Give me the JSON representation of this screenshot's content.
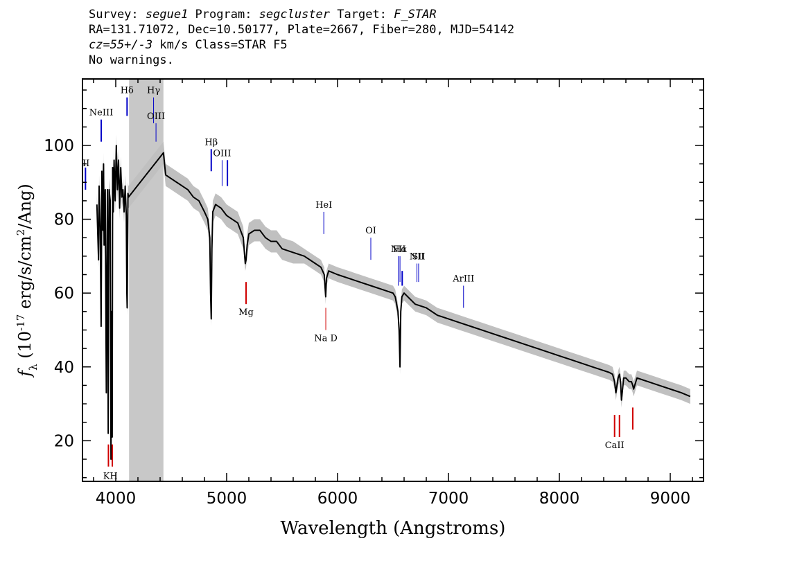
{
  "header": {
    "line1": {
      "survey_label": "Survey: ",
      "survey": "segue1",
      "program_label": " Program: ",
      "program": "segcluster",
      "target_label": " Target: ",
      "target": "F_STAR"
    },
    "line2": "RA=131.71072, Dec=10.50177, Plate=2667, Fiber=280, MJD=54142",
    "line3": {
      "cz": "cz=55+/-3",
      "rest": " km/s Class=STAR F5"
    },
    "line4": "No warnings."
  },
  "colors": {
    "spectrum": "#000000",
    "noise_band": "#c0c0c0",
    "masked_region": "#c8c8c8",
    "emission_line": "#0000c8",
    "absorption_line": "#d00000"
  },
  "chart_data": {
    "type": "line",
    "title": "",
    "xlabel": "Wavelength (Angstroms)",
    "ylabel_parts": {
      "symbol": "f",
      "symbol_sub": "λ",
      "open": " (10",
      "exp1": "-17",
      "mid": " erg/s/cm",
      "exp2": "2",
      "close": "/Ang)"
    },
    "xlim": [
      3700,
      9300
    ],
    "ylim": [
      9,
      118
    ],
    "xticks": [
      4000,
      5000,
      6000,
      7000,
      8000,
      9000
    ],
    "yticks": [
      20,
      40,
      60,
      80,
      100
    ],
    "grid": false,
    "masked_region": [
      4120,
      4430
    ],
    "series": [
      {
        "x": [
          3830,
          3845,
          3850,
          3860,
          3868,
          3875,
          3885,
          3890,
          3895,
          3905,
          3915,
          3925,
          3932,
          3935,
          3940,
          3950,
          3957,
          3962,
          3968,
          3972,
          3978,
          3985,
          3995,
          4005,
          4015,
          4025,
          4035,
          4045,
          4055,
          4065,
          4075,
          4085,
          4095,
          4100,
          4103,
          4110,
          4115,
          4430,
          4450,
          4500,
          4550,
          4600,
          4650,
          4700,
          4750,
          4800,
          4830,
          4848,
          4855,
          4861,
          4867,
          4875,
          4900,
          4950,
          5000,
          5050,
          5100,
          5150,
          5168,
          5175,
          5185,
          5200,
          5250,
          5300,
          5350,
          5400,
          5450,
          5500,
          5600,
          5700,
          5800,
          5850,
          5880,
          5893,
          5900,
          5920,
          6000,
          6100,
          6200,
          6300,
          6400,
          6500,
          6520,
          6545,
          6555,
          6563,
          6570,
          6580,
          6600,
          6700,
          6800,
          6900,
          7000,
          7100,
          7200,
          7300,
          7400,
          7500,
          7600,
          7700,
          7800,
          7900,
          8000,
          8100,
          8200,
          8300,
          8400,
          8450,
          8480,
          8498,
          8510,
          8530,
          8542,
          8552,
          8560,
          8580,
          8600,
          8630,
          8650,
          8662,
          8670,
          8700,
          8800,
          8900,
          9000,
          9100,
          9180
        ],
        "y": [
          84,
          69,
          89,
          78,
          51,
          93,
          77,
          95,
          73,
          88,
          33,
          88,
          22,
          60,
          88,
          85,
          15,
          55,
          21,
          94,
          82,
          96,
          85,
          100,
          88,
          96,
          83,
          94,
          86,
          88,
          82,
          89,
          81,
          60,
          56,
          87,
          86,
          98,
          92,
          91,
          90,
          89,
          88,
          86,
          85,
          82,
          80,
          75,
          60,
          53,
          72,
          82,
          84,
          83,
          81,
          80,
          79,
          75,
          68,
          69,
          73,
          76,
          77,
          77,
          75,
          74,
          74,
          72,
          71,
          70,
          68,
          67,
          65,
          59,
          64,
          66,
          65,
          64,
          63,
          62,
          61,
          60,
          59,
          55,
          50,
          40,
          55,
          59,
          60,
          57,
          56,
          54,
          53,
          52,
          51,
          50,
          49,
          48,
          47,
          46,
          45,
          44,
          43,
          42,
          41,
          40,
          39,
          38.5,
          38,
          36,
          33,
          37,
          38,
          36,
          31,
          37,
          37,
          36,
          36,
          35,
          34,
          37,
          36,
          35,
          34,
          33,
          32
        ]
      }
    ],
    "annotations": [
      {
        "label": "NeIII",
        "x": 3869,
        "y_lo": 101,
        "y_hi": 107,
        "type": "emission"
      },
      {
        "label": "Hδ",
        "x": 4102,
        "y_lo": 108,
        "y_hi": 113,
        "type": "emission"
      },
      {
        "label": "Hγ",
        "x": 4341,
        "y_lo": 106,
        "y_hi": 113,
        "type": "emission"
      },
      {
        "label": "OIII",
        "x": 4363,
        "y_lo": 101,
        "y_hi": 106,
        "type": "emission"
      },
      {
        "label": "Hβ",
        "x": 4861,
        "y_lo": 93,
        "y_hi": 99,
        "type": "emission"
      },
      {
        "label": "OIII",
        "x": 4959,
        "y_lo": 89,
        "y_hi": 96,
        "type": "emission"
      },
      {
        "label": "",
        "x": 5007,
        "y_lo": 89,
        "y_hi": 96,
        "type": "emission"
      },
      {
        "label": "HeI",
        "x": 5876,
        "y_lo": 76,
        "y_hi": 82,
        "type": "emission"
      },
      {
        "label": "OI",
        "x": 6300,
        "y_lo": 69,
        "y_hi": 75,
        "type": "emission"
      },
      {
        "label": "NII",
        "x": 6548,
        "y_lo": 62,
        "y_hi": 70,
        "type": "emission"
      },
      {
        "label": "Hα",
        "x": 6563,
        "y_lo": 63,
        "y_hi": 70,
        "type": "emission"
      },
      {
        "label": "",
        "x": 6583,
        "y_lo": 62,
        "y_hi": 66,
        "type": "emission"
      },
      {
        "label": "NII",
        "x": 6716,
        "y_lo": 63,
        "y_hi": 68,
        "type": "emission"
      },
      {
        "label": "SII",
        "x": 6731,
        "y_lo": 63,
        "y_hi": 68,
        "type": "emission"
      },
      {
        "label": "ArIII",
        "x": 7136,
        "y_lo": 56,
        "y_hi": 62,
        "type": "emission"
      },
      {
        "label": "",
        "x": 3727,
        "y_lo": 88,
        "y_hi": 94,
        "type": "emission"
      },
      {
        "label": "K",
        "x": 3934,
        "y_lo": 13,
        "y_hi": 19,
        "type": "absorption"
      },
      {
        "label": "H",
        "x": 3969,
        "y_lo": 13,
        "y_hi": 19,
        "type": "absorption"
      },
      {
        "label": "Mg",
        "x": 5175,
        "y_lo": 57,
        "y_hi": 63,
        "type": "absorption"
      },
      {
        "label": "Na D",
        "x": 5894,
        "y_lo": 50,
        "y_hi": 56,
        "type": "absorption"
      },
      {
        "label": "CaII",
        "x": 8498,
        "y_lo": 21,
        "y_hi": 27,
        "type": "absorption"
      },
      {
        "label": "",
        "x": 8542,
        "y_lo": 21,
        "y_hi": 27,
        "type": "absorption"
      },
      {
        "label": "",
        "x": 8662,
        "y_lo": 23,
        "y_hi": 29,
        "type": "absorption"
      }
    ],
    "left_edge_label": "II"
  }
}
